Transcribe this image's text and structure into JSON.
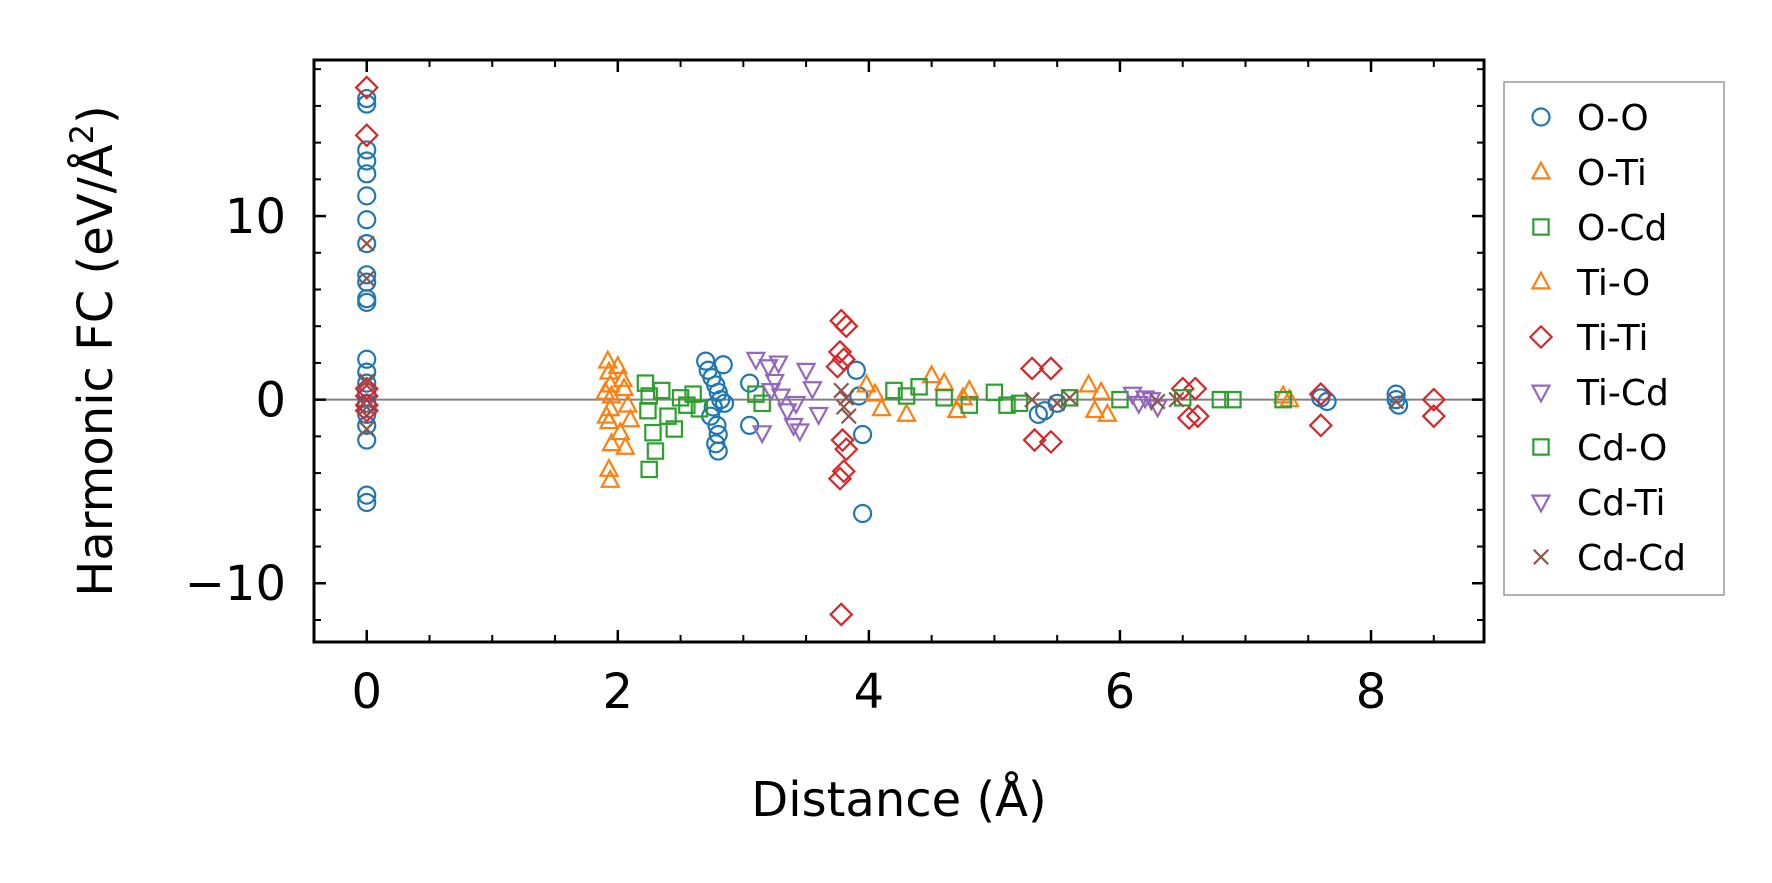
{
  "chart_data": {
    "type": "scatter",
    "xlabel": "Distance (Å)",
    "ylabel_main": "Harmonic FC (eV/Å",
    "ylabel_sup": "2",
    "ylabel_end": ")",
    "xlim": [
      -0.42,
      8.9
    ],
    "ylim": [
      -13.2,
      18.5
    ],
    "xticks": [
      0,
      2,
      4,
      6,
      8
    ],
    "xtick_labels": [
      "0",
      "2",
      "4",
      "6",
      "8"
    ],
    "yticks": [
      -10,
      0,
      10
    ],
    "ytick_labels": [
      "−10",
      "0",
      "10"
    ],
    "zero_line": true,
    "grid": false,
    "legend_position": "outside-right",
    "series": [
      {
        "name": "O-O",
        "marker": "circle",
        "color": "#1f77b4",
        "points": [
          [
            0,
            16.4
          ],
          [
            0,
            16.1
          ],
          [
            0,
            13.6
          ],
          [
            0,
            13.0
          ],
          [
            0,
            12.3
          ],
          [
            0,
            11.1
          ],
          [
            0,
            9.8
          ],
          [
            0,
            8.5
          ],
          [
            0,
            6.8
          ],
          [
            0,
            6.4
          ],
          [
            0,
            5.5
          ],
          [
            0,
            5.3
          ],
          [
            0,
            2.2
          ],
          [
            0,
            1.5
          ],
          [
            0,
            0.9
          ],
          [
            0,
            0.4
          ],
          [
            0,
            -0.2
          ],
          [
            0,
            -0.8
          ],
          [
            0,
            -1.4
          ],
          [
            0,
            -2.2
          ],
          [
            0,
            -5.2
          ],
          [
            0,
            -5.6
          ],
          [
            2.7,
            2.1
          ],
          [
            2.72,
            1.6
          ],
          [
            2.75,
            1.2
          ],
          [
            2.78,
            0.8
          ],
          [
            2.8,
            0.4
          ],
          [
            2.82,
            0.0
          ],
          [
            2.76,
            -0.4
          ],
          [
            2.74,
            -0.9
          ],
          [
            2.79,
            -1.4
          ],
          [
            2.8,
            -1.9
          ],
          [
            2.78,
            -2.4
          ],
          [
            2.8,
            -2.8
          ],
          [
            2.84,
            1.9
          ],
          [
            2.85,
            -0.2
          ],
          [
            3.05,
            0.9
          ],
          [
            3.05,
            -1.4
          ],
          [
            3.9,
            1.6
          ],
          [
            3.95,
            -1.9
          ],
          [
            3.95,
            -6.2
          ],
          [
            3.92,
            0.2
          ],
          [
            5.35,
            -0.8
          ],
          [
            5.4,
            -0.6
          ],
          [
            5.5,
            -0.2
          ],
          [
            7.6,
            0.1
          ],
          [
            7.65,
            -0.1
          ],
          [
            8.2,
            0.3
          ],
          [
            8.2,
            0.0
          ],
          [
            8.22,
            -0.3
          ]
        ]
      },
      {
        "name": "O-Ti",
        "marker": "triangle-up",
        "color": "#ff7f0e",
        "points": [
          [
            1.92,
            2.1
          ],
          [
            1.93,
            1.5
          ],
          [
            1.94,
            0.8
          ],
          [
            1.95,
            0.2
          ],
          [
            1.94,
            -0.5
          ],
          [
            1.93,
            -1.2
          ],
          [
            1.95,
            -2.4
          ],
          [
            1.93,
            -3.8
          ],
          [
            1.94,
            -4.4
          ],
          [
            2.0,
            1.8
          ],
          [
            2.05,
            0.6
          ],
          [
            2.08,
            -0.3
          ],
          [
            2.1,
            -1.1
          ],
          [
            2.04,
            1.1
          ],
          [
            2.02,
            -1.8
          ],
          [
            3.98,
            0.8
          ],
          [
            4.05,
            0.3
          ],
          [
            4.1,
            -0.5
          ],
          [
            4.5,
            1.3
          ],
          [
            4.6,
            0.9
          ],
          [
            4.7,
            -0.6
          ],
          [
            4.8,
            0.5
          ],
          [
            5.75,
            0.8
          ],
          [
            5.8,
            -0.6
          ],
          [
            5.85,
            0.4
          ],
          [
            7.3,
            0.2
          ],
          [
            7.35,
            0.0
          ]
        ]
      },
      {
        "name": "O-Cd",
        "marker": "square",
        "color": "#2ca02c",
        "points": [
          [
            2.22,
            0.9
          ],
          [
            2.25,
            0.2
          ],
          [
            2.24,
            -0.6
          ],
          [
            2.28,
            -1.8
          ],
          [
            2.3,
            -2.8
          ],
          [
            2.25,
            -3.8
          ],
          [
            2.35,
            0.5
          ],
          [
            2.4,
            -0.9
          ],
          [
            2.45,
            -1.6
          ],
          [
            2.5,
            0.1
          ],
          [
            2.55,
            -0.3
          ],
          [
            3.1,
            0.3
          ],
          [
            3.15,
            -0.2
          ],
          [
            4.2,
            0.5
          ],
          [
            4.4,
            0.7
          ],
          [
            4.6,
            0.1
          ],
          [
            4.8,
            -0.3
          ],
          [
            5.0,
            0.4
          ],
          [
            5.2,
            -0.2
          ],
          [
            5.6,
            0.1
          ],
          [
            6.0,
            0.0
          ],
          [
            6.8,
            0.0
          ],
          [
            6.9,
            0.0
          ],
          [
            7.3,
            0.0
          ]
        ]
      },
      {
        "name": "Ti-O",
        "marker": "triangle-up",
        "color": "#ff7f0e",
        "points": [
          [
            1.9,
            0.4
          ],
          [
            1.91,
            -0.9
          ],
          [
            2.06,
            -2.6
          ],
          [
            4.3,
            -0.8
          ],
          [
            4.75,
            0.1
          ],
          [
            5.9,
            -0.8
          ]
        ]
      },
      {
        "name": "Ti-Ti",
        "marker": "diamond",
        "color": "#d62728",
        "points": [
          [
            0,
            17.0
          ],
          [
            0,
            14.4
          ],
          [
            0,
            0.6
          ],
          [
            0,
            0.2
          ],
          [
            0,
            -0.3
          ],
          [
            0,
            -0.6
          ],
          [
            3.78,
            4.3
          ],
          [
            3.82,
            4.0
          ],
          [
            3.77,
            2.6
          ],
          [
            3.8,
            2.2
          ],
          [
            3.75,
            1.8
          ],
          [
            3.79,
            -2.2
          ],
          [
            3.82,
            -2.7
          ],
          [
            3.77,
            -4.3
          ],
          [
            3.8,
            -3.9
          ],
          [
            3.78,
            -11.7
          ],
          [
            5.3,
            1.7
          ],
          [
            5.45,
            1.7
          ],
          [
            5.32,
            -2.2
          ],
          [
            5.45,
            -2.3
          ],
          [
            6.5,
            0.6
          ],
          [
            6.6,
            0.6
          ],
          [
            6.55,
            -1.0
          ],
          [
            6.62,
            -0.9
          ],
          [
            7.6,
            0.3
          ],
          [
            7.6,
            -1.4
          ],
          [
            8.5,
            0.0
          ],
          [
            8.5,
            -0.9
          ]
        ]
      },
      {
        "name": "Ti-Cd",
        "marker": "triangle-down",
        "color": "#9467bd",
        "points": [
          [
            3.1,
            2.2
          ],
          [
            3.2,
            1.8
          ],
          [
            3.25,
            1.0
          ],
          [
            3.3,
            0.2
          ],
          [
            3.35,
            -0.6
          ],
          [
            3.4,
            -1.4
          ],
          [
            3.45,
            -1.7
          ],
          [
            3.5,
            1.6
          ],
          [
            3.55,
            0.6
          ],
          [
            3.6,
            -0.8
          ],
          [
            3.15,
            -1.8
          ],
          [
            3.28,
            2.0
          ],
          [
            6.1,
            0.3
          ],
          [
            6.15,
            -0.2
          ],
          [
            6.2,
            0.1
          ],
          [
            6.3,
            -0.4
          ]
        ]
      },
      {
        "name": "Cd-O",
        "marker": "square",
        "color": "#2ca02c",
        "points": [
          [
            2.6,
            0.3
          ],
          [
            2.65,
            -0.5
          ],
          [
            4.3,
            0.2
          ],
          [
            5.1,
            -0.3
          ],
          [
            6.5,
            0.1
          ]
        ]
      },
      {
        "name": "Cd-Ti",
        "marker": "triangle-down",
        "color": "#9467bd",
        "points": [
          [
            3.22,
            0.5
          ],
          [
            3.42,
            -0.2
          ],
          [
            6.25,
            0.0
          ]
        ]
      },
      {
        "name": "Cd-Cd",
        "marker": "x",
        "color": "#8c564b",
        "points": [
          [
            0,
            8.5
          ],
          [
            0,
            6.6
          ],
          [
            0,
            1.0
          ],
          [
            0,
            -0.4
          ],
          [
            0,
            -1.6
          ],
          [
            3.78,
            0.5
          ],
          [
            3.82,
            0.1
          ],
          [
            3.8,
            -0.4
          ],
          [
            3.84,
            -0.9
          ],
          [
            5.3,
            0.0
          ],
          [
            5.5,
            -0.2
          ],
          [
            5.6,
            0.1
          ],
          [
            6.3,
            -0.1
          ],
          [
            6.45,
            0.0
          ],
          [
            8.2,
            -0.1
          ]
        ]
      }
    ]
  }
}
